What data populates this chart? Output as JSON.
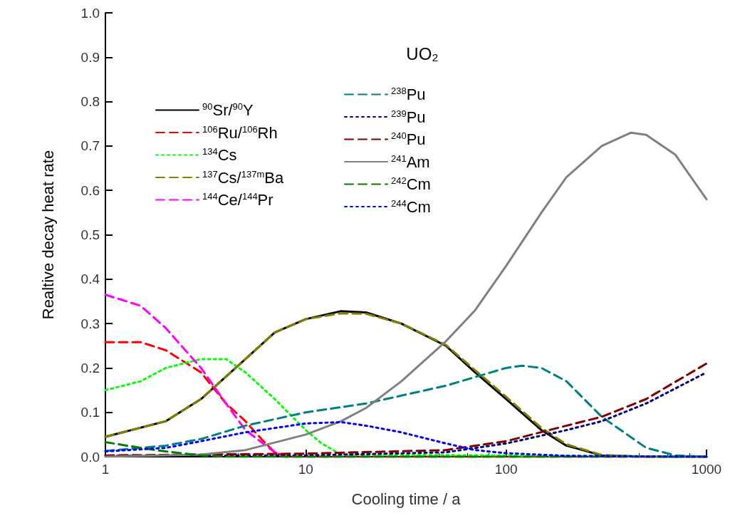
{
  "chart_data": {
    "type": "line",
    "title": "UO₂",
    "xlabel": "Cooling time / a",
    "ylabel": "Realtive decay heat rate",
    "log": "x",
    "xlim": [
      1,
      1000
    ],
    "xticks": [
      1,
      10,
      100,
      1000
    ],
    "ylim": [
      0,
      1.0
    ],
    "yticks": [
      {
        "value": 0,
        "label": "0.0"
      },
      {
        "value": 0.1,
        "label": "0.1"
      },
      {
        "value": 0.2,
        "label": "0.2"
      },
      {
        "value": 0.3,
        "label": "0.3"
      },
      {
        "value": 0.4,
        "label": "0.4"
      },
      {
        "value": 0.5,
        "label": "0.5"
      },
      {
        "value": 0.6,
        "label": "0.6"
      },
      {
        "value": 0.7,
        "label": "0.7"
      },
      {
        "value": 0.8,
        "label": "0.8"
      },
      {
        "value": 0.9,
        "label": "0.9"
      },
      {
        "value": 1.0,
        "label": "1.0"
      }
    ],
    "grid": false,
    "legend": "top left",
    "marker": "none",
    "series": [
      {
        "name": "$^{90}$Sr/$^{90}$Y",
        "color": "#000000",
        "line_style": "solid",
        "x": [
          1,
          2,
          3,
          5,
          7,
          10,
          15,
          20,
          30,
          50,
          70,
          100,
          150,
          200,
          300,
          500,
          1000
        ],
        "values": [
          0.045,
          0.08,
          0.13,
          0.22,
          0.28,
          0.31,
          0.328,
          0.325,
          0.3,
          0.25,
          0.19,
          0.13,
          0.06,
          0.025,
          0.003,
          0,
          0
        ]
      },
      {
        "name": "$^{106}$Ru/$^{106}$Rh",
        "color": "#ff0000",
        "line_style": "dashed",
        "x": [
          1,
          1.5,
          2,
          3,
          4,
          5,
          6,
          7,
          8,
          1000
        ],
        "values": [
          0.258,
          0.258,
          0.24,
          0.19,
          0.12,
          0.08,
          0.04,
          0.01,
          0,
          0
        ]
      },
      {
        "name": "$^{134}$Cs",
        "color": "#00ff00",
        "line_style": "dotted",
        "x": [
          1,
          1.5,
          2,
          3,
          4,
          5,
          7,
          10,
          12,
          15,
          1000
        ],
        "values": [
          0.15,
          0.17,
          0.2,
          0.22,
          0.22,
          0.19,
          0.13,
          0.06,
          0.03,
          0.005,
          0
        ]
      },
      {
        "name": "$^{137}$Cs/$^{137m}$Ba",
        "color": "#808000",
        "line_style": "dashed",
        "x": [
          1,
          2,
          3,
          5,
          7,
          10,
          15,
          20,
          30,
          50,
          70,
          100,
          150,
          200,
          300,
          500,
          1000
        ],
        "values": [
          0.045,
          0.08,
          0.13,
          0.22,
          0.28,
          0.31,
          0.323,
          0.322,
          0.3,
          0.252,
          0.195,
          0.135,
          0.065,
          0.028,
          0.004,
          0,
          0
        ]
      },
      {
        "name": "$^{144}$Ce/$^{144}$Pr",
        "color": "#ff00ff",
        "line_style": "dashed",
        "x": [
          1,
          1.5,
          2,
          3,
          4,
          5,
          7,
          8
        ],
        "values": [
          0.365,
          0.34,
          0.29,
          0.2,
          0.12,
          0.06,
          0.01,
          0
        ]
      },
      {
        "name": "$^{238}$Pu",
        "color": "#008080",
        "line_style": "dashed",
        "x": [
          1,
          2,
          3,
          5,
          10,
          20,
          50,
          100,
          120,
          150,
          200,
          300,
          500,
          700,
          1000
        ],
        "values": [
          0.013,
          0.025,
          0.04,
          0.07,
          0.1,
          0.12,
          0.16,
          0.2,
          0.205,
          0.2,
          0.17,
          0.09,
          0.02,
          0.003,
          0
        ]
      },
      {
        "name": "$^{239}$Pu",
        "color": "#000080",
        "line_style": "dotted",
        "x": [
          1,
          10,
          50,
          100,
          200,
          300,
          500,
          1000
        ],
        "values": [
          0.002,
          0.003,
          0.01,
          0.03,
          0.06,
          0.08,
          0.12,
          0.19
        ]
      },
      {
        "name": "$^{240}$Pu",
        "color": "#800000",
        "line_style": "dashed",
        "x": [
          1,
          10,
          50,
          100,
          200,
          300,
          500,
          1000
        ],
        "values": [
          0.003,
          0.007,
          0.015,
          0.035,
          0.07,
          0.09,
          0.13,
          0.21
        ]
      },
      {
        "name": "$^{241}$Am",
        "color": "#808080",
        "line_style": "solid",
        "x": [
          1,
          3,
          5,
          10,
          15,
          20,
          30,
          50,
          70,
          100,
          150,
          200,
          300,
          420,
          500,
          700,
          1000
        ],
        "values": [
          0,
          0.005,
          0.015,
          0.05,
          0.08,
          0.11,
          0.17,
          0.26,
          0.33,
          0.43,
          0.55,
          0.63,
          0.7,
          0.73,
          0.725,
          0.68,
          0.58
        ]
      },
      {
        "name": "$^{242}$Cm",
        "color": "#008000",
        "line_style": "dashed",
        "x": [
          1,
          1.5,
          2,
          3,
          4,
          1000
        ],
        "values": [
          0.033,
          0.02,
          0.012,
          0.003,
          0,
          0
        ]
      },
      {
        "name": "$^{244}$Cm",
        "color": "#0000ff",
        "line_style": "dotted",
        "x": [
          1,
          2,
          3,
          5,
          10,
          15,
          20,
          30,
          50,
          70,
          100,
          200,
          1000
        ],
        "values": [
          0.012,
          0.02,
          0.035,
          0.055,
          0.075,
          0.078,
          0.07,
          0.055,
          0.03,
          0.015,
          0.008,
          0.002,
          0
        ]
      }
    ]
  }
}
